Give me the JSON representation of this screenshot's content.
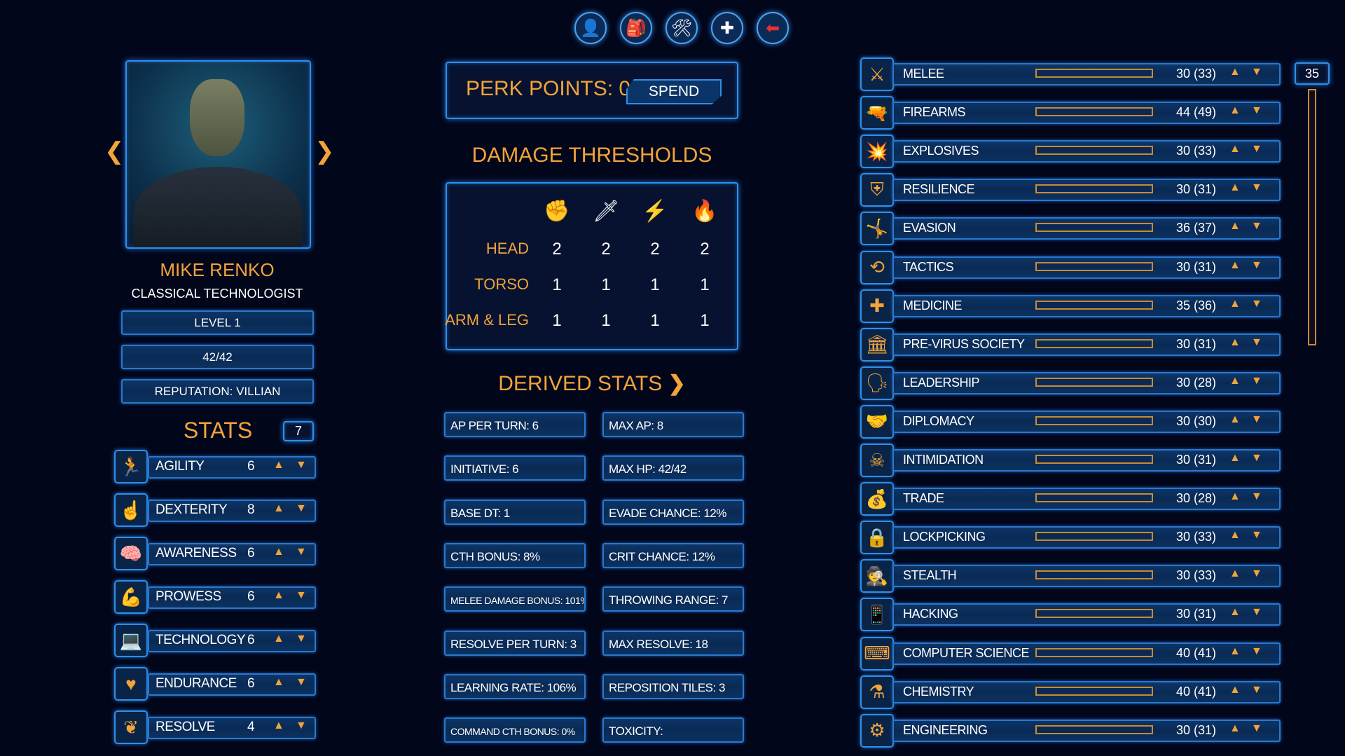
{
  "top_nav": [
    {
      "name": "character",
      "icon": "person-icon",
      "glyph": "👤"
    },
    {
      "name": "inventory",
      "icon": "backpack-icon",
      "glyph": "🎒"
    },
    {
      "name": "crafting",
      "icon": "tools-icon",
      "glyph": "🛠"
    },
    {
      "name": "health",
      "icon": "plus-icon",
      "glyph": "✚"
    },
    {
      "name": "back",
      "icon": "back-arrow-icon",
      "glyph": "⬅"
    }
  ],
  "character": {
    "name": "MIKE RENKO",
    "class": "CLASSICAL TECHNOLOGIST",
    "level": "LEVEL 1",
    "hp": "42/42",
    "reputation": "REPUTATION: VILLIAN"
  },
  "stats": {
    "title": "STATS",
    "points": "7",
    "items": [
      {
        "label": "AGILITY",
        "value": "6",
        "icon": "running-man-icon",
        "glyph": "🏃"
      },
      {
        "label": "DEXTERITY",
        "value": "8",
        "icon": "pointing-hand-icon",
        "glyph": "☝"
      },
      {
        "label": "AWARENESS",
        "value": "6",
        "icon": "brain-icon",
        "glyph": "🧠"
      },
      {
        "label": "PROWESS",
        "value": "6",
        "icon": "flexed-arm-icon",
        "glyph": "💪"
      },
      {
        "label": "TECHNOLOGY",
        "value": "6",
        "icon": "laptop-gear-icon",
        "glyph": "💻"
      },
      {
        "label": "ENDURANCE",
        "value": "6",
        "icon": "heart-icon",
        "glyph": "♥"
      },
      {
        "label": "RESOLVE",
        "value": "4",
        "icon": "wings-icon",
        "glyph": "❦"
      }
    ]
  },
  "perk": {
    "label": "PERK POINTS: 0",
    "spend": "SPEND"
  },
  "damage_thresholds": {
    "title": "DAMAGE THRESHOLDS",
    "columns": [
      {
        "icon": "fist-icon",
        "glyph": "✊",
        "color": "#ffffff"
      },
      {
        "icon": "blade-icon",
        "glyph": "🗡",
        "color": "#ffffff"
      },
      {
        "icon": "lightning-icon",
        "glyph": "⚡",
        "color": "#2fd3c8"
      },
      {
        "icon": "fire-icon",
        "glyph": "🔥",
        "color": "#f2a33a"
      }
    ],
    "rows": [
      {
        "label": "HEAD",
        "values": [
          "2",
          "2",
          "2",
          "2"
        ]
      },
      {
        "label": "TORSO",
        "values": [
          "1",
          "1",
          "1",
          "1"
        ]
      },
      {
        "label": "ARM & LEG",
        "values": [
          "1",
          "1",
          "1",
          "1"
        ]
      }
    ]
  },
  "derived": {
    "title": "DERIVED STATS",
    "items": [
      "AP PER TURN: 6",
      "MAX AP: 8",
      "INITIATIVE: 6",
      "MAX HP: 42/42",
      "BASE DT: 1",
      "EVADE CHANCE: 12%",
      "CTH BONUS: 8%",
      "CRIT CHANCE: 12%",
      "MELEE DAMAGE BONUS: 101%",
      "THROWING RANGE: 7",
      "RESOLVE PER TURN: 3",
      "MAX RESOLVE: 18",
      "LEARNING RATE: 106%",
      "REPOSITION TILES: 3",
      "COMMAND CTH BONUS: 0%",
      "TOXICITY:"
    ]
  },
  "skills": {
    "points": "35",
    "items": [
      {
        "label": "MELEE",
        "value": "30 (33)",
        "icon": "crossed-swords-icon",
        "glyph": "⚔"
      },
      {
        "label": "FIREARMS",
        "value": "44 (49)",
        "icon": "pistol-icon",
        "glyph": "🔫"
      },
      {
        "label": "EXPLOSIVES",
        "value": "30 (33)",
        "icon": "explosion-icon",
        "glyph": "💥"
      },
      {
        "label": "RESILIENCE",
        "value": "30 (31)",
        "icon": "shield-icon",
        "glyph": "⛨"
      },
      {
        "label": "EVASION",
        "value": "36 (37)",
        "icon": "dodging-figure-icon",
        "glyph": "🤸"
      },
      {
        "label": "TACTICS",
        "value": "30 (31)",
        "icon": "tactics-arrows-icon",
        "glyph": "⟲"
      },
      {
        "label": "MEDICINE",
        "value": "35 (36)",
        "icon": "medical-cross-icon",
        "glyph": "✚"
      },
      {
        "label": "PRE-VIRUS SOCIETY",
        "value": "30 (31)",
        "icon": "building-icon",
        "glyph": "🏛"
      },
      {
        "label": "LEADERSHIP",
        "value": "30 (28)",
        "icon": "leader-icon",
        "glyph": "🗣"
      },
      {
        "label": "DIPLOMACY",
        "value": "30 (30)",
        "icon": "handshake-icon",
        "glyph": "🤝"
      },
      {
        "label": "INTIMIDATION",
        "value": "30 (31)",
        "icon": "skull-icon",
        "glyph": "☠"
      },
      {
        "label": "TRADE",
        "value": "30 (28)",
        "icon": "money-bag-icon",
        "glyph": "💰"
      },
      {
        "label": "LOCKPICKING",
        "value": "30 (33)",
        "icon": "padlock-icon",
        "glyph": "🔒"
      },
      {
        "label": "STEALTH",
        "value": "30 (33)",
        "icon": "hooded-figure-icon",
        "glyph": "🕵"
      },
      {
        "label": "HACKING",
        "value": "30 (31)",
        "icon": "hacking-device-icon",
        "glyph": "📱"
      },
      {
        "label": "COMPUTER SCIENCE",
        "value": "40 (41)",
        "icon": "binary-icon",
        "glyph": "⌨"
      },
      {
        "label": "CHEMISTRY",
        "value": "40 (41)",
        "icon": "flask-icon",
        "glyph": "⚗"
      },
      {
        "label": "ENGINEERING",
        "value": "30 (31)",
        "icon": "gears-wrench-icon",
        "glyph": "⚙"
      }
    ]
  },
  "colors": {
    "accent": "#f2a33a",
    "frame": "#2f8fe8",
    "panel": "#0a2a55",
    "background": "#02061a"
  }
}
